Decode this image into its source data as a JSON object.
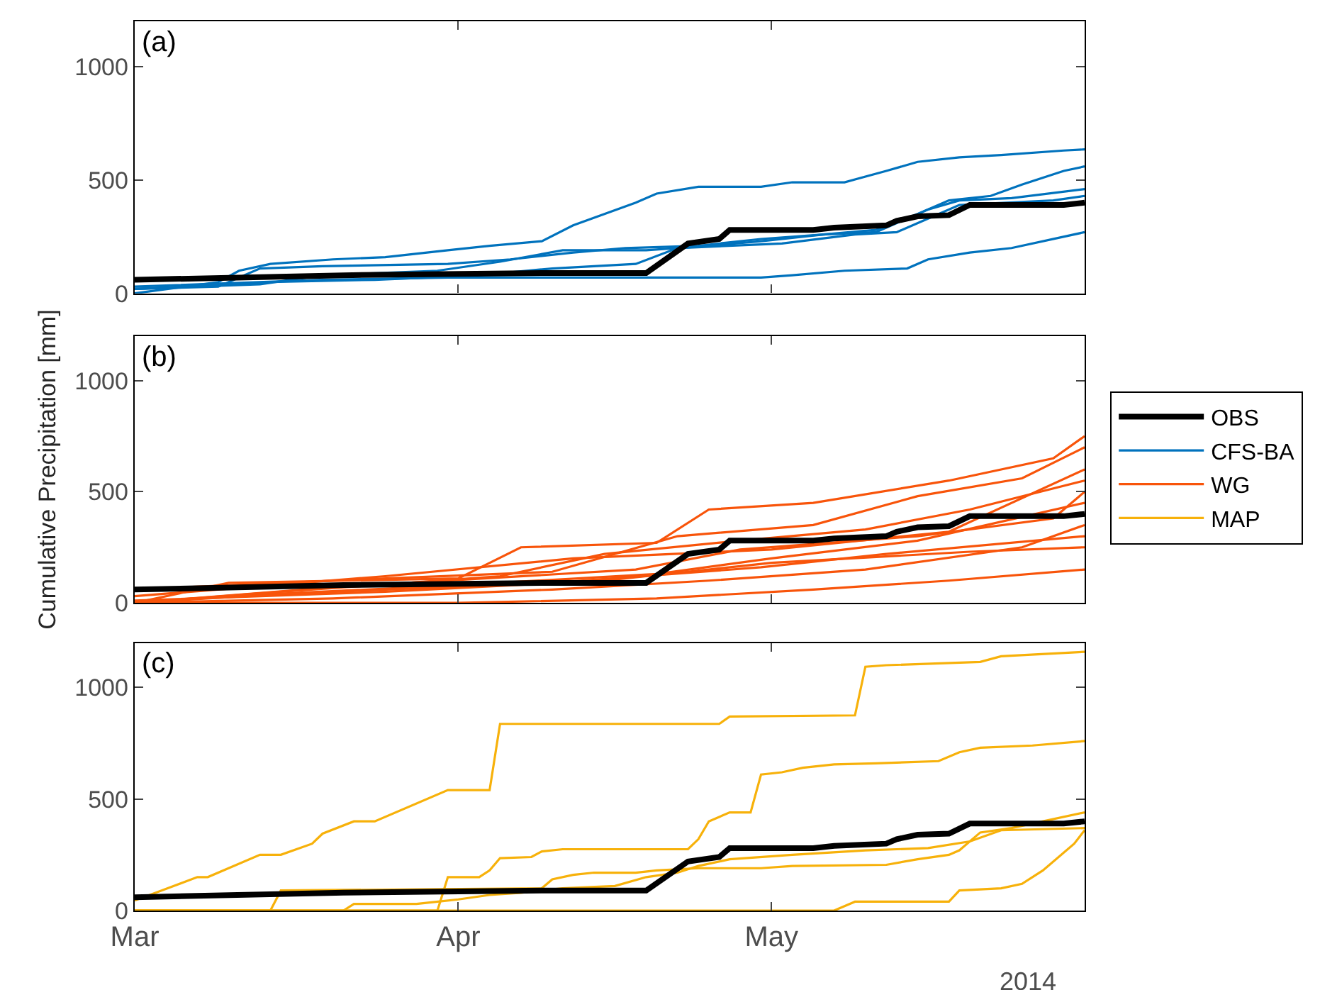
{
  "chart_data": [
    {
      "type": "line",
      "annotations": [
        "(a)"
      ],
      "legend": "right",
      "xlim": [
        "2014-03-01",
        "2014-05-31"
      ],
      "xticks": [
        {
          "value": "2014-03-01",
          "label": null
        },
        {
          "value": "2014-04-01",
          "label": null
        },
        {
          "value": "2014-05-01",
          "label": null
        }
      ],
      "ylim": [
        0,
        1200
      ],
      "yticks": [
        0,
        500,
        1000
      ],
      "grid": false,
      "tick_labels": "y",
      "series": [
        {
          "name": "OBS",
          "color": "#000000",
          "x": [
            "2014-03-01",
            "2014-03-21",
            "2014-04-09",
            "2014-04-19",
            "2014-04-23",
            "2014-04-26",
            "2014-04-27",
            "2014-05-05",
            "2014-05-07",
            "2014-05-12",
            "2014-05-13",
            "2014-05-15",
            "2014-05-18",
            "2014-05-20",
            "2014-05-29",
            "2014-05-31"
          ],
          "values": [
            60,
            80,
            90,
            90,
            220,
            240,
            280,
            280,
            290,
            300,
            320,
            340,
            345,
            390,
            390,
            400
          ]
        },
        {
          "name": "CFS-BA",
          "color": "#0072bd",
          "x": [
            "2014-03-01",
            "2014-03-09",
            "2014-03-11",
            "2014-03-14",
            "2014-03-20",
            "2014-03-25",
            "2014-03-31",
            "2014-04-04",
            "2014-04-09",
            "2014-04-12",
            "2014-04-15",
            "2014-04-18",
            "2014-04-20",
            "2014-04-24",
            "2014-04-30",
            "2014-05-03",
            "2014-05-08",
            "2014-05-12",
            "2014-05-15",
            "2014-05-19",
            "2014-05-23",
            "2014-05-29",
            "2014-05-31"
          ],
          "values": [
            0,
            50,
            100,
            130,
            150,
            160,
            190,
            210,
            230,
            300,
            350,
            400,
            440,
            470,
            470,
            490,
            490,
            540,
            580,
            600,
            610,
            630,
            635
          ]
        },
        {
          "color": "#0072bd",
          "x": [
            "2014-03-01",
            "2014-03-09",
            "2014-03-13",
            "2014-03-19",
            "2014-03-31",
            "2014-04-06",
            "2014-04-12",
            "2014-04-17",
            "2014-04-24",
            "2014-04-30",
            "2014-05-06",
            "2014-05-11",
            "2014-05-15",
            "2014-05-18",
            "2014-05-22",
            "2014-05-25",
            "2014-05-29",
            "2014-05-31"
          ],
          "values": [
            20,
            30,
            110,
            120,
            130,
            150,
            180,
            200,
            210,
            240,
            260,
            280,
            350,
            410,
            430,
            480,
            540,
            560
          ]
        },
        {
          "color": "#0072bd",
          "x": [
            "2014-03-01",
            "2014-03-13",
            "2014-03-19",
            "2014-03-30",
            "2014-04-05",
            "2014-04-11",
            "2014-04-19",
            "2014-04-25",
            "2014-04-30",
            "2014-05-06",
            "2014-05-11",
            "2014-05-16",
            "2014-05-19",
            "2014-05-24",
            "2014-05-31"
          ],
          "values": [
            20,
            40,
            80,
            100,
            140,
            190,
            190,
            210,
            230,
            260,
            270,
            370,
            410,
            420,
            460
          ]
        },
        {
          "color": "#0072bd",
          "x": [
            "2014-03-01",
            "2014-03-19",
            "2014-03-31",
            "2014-04-30",
            "2014-05-03",
            "2014-05-08",
            "2014-05-14",
            "2014-05-16",
            "2014-05-20",
            "2014-05-24",
            "2014-05-31"
          ],
          "values": [
            30,
            60,
            70,
            70,
            80,
            100,
            110,
            150,
            180,
            200,
            270
          ]
        },
        {
          "color": "#0072bd",
          "x": [
            "2014-03-01",
            "2014-03-14",
            "2014-03-24",
            "2014-04-03",
            "2014-04-10",
            "2014-04-18",
            "2014-04-22",
            "2014-05-02",
            "2014-05-09",
            "2014-05-13",
            "2014-05-16",
            "2014-05-19",
            "2014-05-28",
            "2014-05-31"
          ],
          "values": [
            20,
            50,
            60,
            80,
            110,
            130,
            200,
            220,
            260,
            270,
            330,
            390,
            410,
            430
          ]
        }
      ]
    },
    {
      "type": "line",
      "annotations": [
        "(b)"
      ],
      "ylabel": "Cumulative Precipitation [mm]",
      "legend": "right",
      "xlim": [
        "2014-03-01",
        "2014-05-31"
      ],
      "xticks": [
        {
          "value": "2014-03-01",
          "label": null
        },
        {
          "value": "2014-04-01",
          "label": null
        },
        {
          "value": "2014-05-01",
          "label": null
        }
      ],
      "ylim": [
        0,
        1200
      ],
      "yticks": [
        0,
        500,
        1000
      ],
      "grid": false,
      "tick_labels": "y",
      "series": [
        {
          "color": "#000000",
          "x": [
            "2014-03-01",
            "2014-03-21",
            "2014-04-09",
            "2014-04-19",
            "2014-04-23",
            "2014-04-26",
            "2014-04-27",
            "2014-05-05",
            "2014-05-07",
            "2014-05-12",
            "2014-05-13",
            "2014-05-15",
            "2014-05-18",
            "2014-05-20",
            "2014-05-29",
            "2014-05-31"
          ],
          "values": [
            60,
            80,
            90,
            90,
            220,
            240,
            280,
            280,
            290,
            300,
            320,
            340,
            345,
            390,
            390,
            400
          ]
        },
        {
          "name": "WG",
          "color": "#f8540a",
          "x": [
            "2014-03-01",
            "2014-03-10",
            "2014-04-01",
            "2014-04-07",
            "2014-04-20",
            "2014-04-25",
            "2014-05-05",
            "2014-05-18",
            "2014-05-28",
            "2014-05-31"
          ],
          "values": [
            0,
            90,
            110,
            250,
            270,
            420,
            450,
            550,
            650,
            750
          ]
        },
        {
          "color": "#f8540a",
          "x": [
            "2014-03-01",
            "2014-03-20",
            "2014-04-10",
            "2014-04-22",
            "2014-05-05",
            "2014-05-15",
            "2014-05-25",
            "2014-05-31"
          ],
          "values": [
            60,
            100,
            140,
            300,
            350,
            480,
            560,
            700
          ]
        },
        {
          "color": "#f8540a",
          "x": [
            "2014-03-01",
            "2014-03-15",
            "2014-04-05",
            "2014-04-15",
            "2014-04-28",
            "2014-05-10",
            "2014-05-20",
            "2014-05-31"
          ],
          "values": [
            0,
            50,
            120,
            220,
            280,
            330,
            420,
            550
          ]
        },
        {
          "color": "#f8540a",
          "x": [
            "2014-03-01",
            "2014-03-10",
            "2014-04-01",
            "2014-04-20",
            "2014-05-01",
            "2014-05-15",
            "2014-05-31"
          ],
          "values": [
            0,
            30,
            80,
            130,
            200,
            280,
            450
          ]
        },
        {
          "color": "#f8540a",
          "x": [
            "2014-03-01",
            "2014-03-20",
            "2014-04-10",
            "2014-04-25",
            "2014-05-10",
            "2014-05-25",
            "2014-05-31"
          ],
          "values": [
            0,
            20,
            60,
            100,
            150,
            250,
            350
          ]
        },
        {
          "color": "#f8540a",
          "x": [
            "2014-03-01",
            "2014-04-01",
            "2014-04-20",
            "2014-05-05",
            "2014-05-18",
            "2014-05-31"
          ],
          "values": [
            0,
            0,
            20,
            60,
            100,
            150
          ]
        },
        {
          "color": "#f8540a",
          "x": [
            "2014-03-01",
            "2014-03-25",
            "2014-04-15",
            "2014-05-01",
            "2014-05-20",
            "2014-05-31"
          ],
          "values": [
            10,
            50,
            100,
            180,
            230,
            250
          ]
        },
        {
          "color": "#f8540a",
          "x": [
            "2014-03-01",
            "2014-03-20",
            "2014-04-18",
            "2014-04-28",
            "2014-05-15",
            "2014-05-28",
            "2014-05-31"
          ],
          "values": [
            0,
            70,
            150,
            240,
            300,
            380,
            500
          ]
        },
        {
          "color": "#f8540a",
          "x": [
            "2014-03-01",
            "2014-03-25",
            "2014-04-12",
            "2014-05-01",
            "2014-05-18",
            "2014-05-31"
          ],
          "values": [
            30,
            120,
            200,
            240,
            320,
            600
          ]
        },
        {
          "color": "#f8540a",
          "x": [
            "2014-03-01",
            "2014-03-15",
            "2014-04-10",
            "2014-04-30",
            "2014-05-12",
            "2014-05-31"
          ],
          "values": [
            0,
            40,
            90,
            160,
            220,
            300
          ]
        }
      ]
    },
    {
      "type": "line",
      "annotations": [
        "(c)",
        "2014"
      ],
      "legend": "right",
      "xlim": [
        "2014-03-01",
        "2014-05-31"
      ],
      "xticks": [
        {
          "value": "2014-03-01",
          "label": "Mar"
        },
        {
          "value": "2014-04-01",
          "label": "Apr"
        },
        {
          "value": "2014-05-01",
          "label": "May"
        }
      ],
      "ylim": [
        0,
        1200
      ],
      "yticks": [
        0,
        500,
        1000
      ],
      "grid": false,
      "series": [
        {
          "color": "#000000",
          "x": [
            "2014-03-01",
            "2014-03-21",
            "2014-04-09",
            "2014-04-19",
            "2014-04-23",
            "2014-04-26",
            "2014-04-27",
            "2014-05-05",
            "2014-05-07",
            "2014-05-12",
            "2014-05-13",
            "2014-05-15",
            "2014-05-18",
            "2014-05-20",
            "2014-05-29",
            "2014-05-31"
          ],
          "values": [
            60,
            80,
            90,
            90,
            220,
            240,
            280,
            280,
            290,
            300,
            320,
            340,
            345,
            390,
            390,
            400
          ]
        },
        {
          "name": "MAP",
          "color": "#f7b10a",
          "x": [
            "2014-03-01",
            "2014-03-07",
            "2014-03-08",
            "2014-03-13",
            "2014-03-15",
            "2014-03-18",
            "2014-03-19",
            "2014-03-22",
            "2014-03-24",
            "2014-03-31",
            "2014-04-04",
            "2014-04-05",
            "2014-04-26",
            "2014-04-27",
            "2014-05-09",
            "2014-05-10",
            "2014-05-12",
            "2014-05-21",
            "2014-05-23",
            "2014-05-31"
          ],
          "values": [
            45,
            150,
            150,
            250,
            250,
            300,
            345,
            400,
            400,
            540,
            540,
            837,
            837,
            870,
            875,
            1093,
            1100,
            1115,
            1140,
            1160
          ]
        },
        {
          "color": "#f7b10a",
          "x": [
            "2014-03-01",
            "2014-03-30",
            "2014-03-31",
            "2014-04-03",
            "2014-04-04",
            "2014-04-05",
            "2014-04-08",
            "2014-04-09",
            "2014-04-11",
            "2014-04-23",
            "2014-04-24",
            "2014-04-25",
            "2014-04-27",
            "2014-04-29",
            "2014-04-30",
            "2014-05-02",
            "2014-05-04",
            "2014-05-07",
            "2014-05-11",
            "2014-05-17",
            "2014-05-19",
            "2014-05-21",
            "2014-05-26",
            "2014-05-31"
          ],
          "values": [
            0,
            0,
            150,
            150,
            180,
            235,
            240,
            265,
            275,
            275,
            320,
            400,
            440,
            440,
            610,
            620,
            640,
            655,
            660,
            670,
            710,
            730,
            740,
            760
          ]
        },
        {
          "color": "#f7b10a",
          "x": [
            "2014-03-01",
            "2014-03-14",
            "2014-03-15",
            "2014-04-09",
            "2014-04-10",
            "2014-04-12",
            "2014-04-14",
            "2014-04-18",
            "2014-04-20",
            "2014-04-24",
            "2014-04-30",
            "2014-05-03",
            "2014-05-12",
            "2014-05-15",
            "2014-05-18",
            "2014-05-19",
            "2014-05-21",
            "2014-05-24",
            "2014-05-31"
          ],
          "values": [
            0,
            0,
            90,
            100,
            140,
            160,
            170,
            170,
            180,
            190,
            190,
            200,
            205,
            230,
            250,
            270,
            350,
            370,
            440
          ]
        },
        {
          "color": "#f7b10a",
          "x": [
            "2014-03-01",
            "2014-03-21",
            "2014-03-22",
            "2014-03-28",
            "2014-04-01",
            "2014-04-04",
            "2014-04-07",
            "2014-04-11",
            "2014-04-16",
            "2014-04-19",
            "2014-04-22",
            "2014-04-24",
            "2014-04-27",
            "2014-05-03",
            "2014-05-10",
            "2014-05-16",
            "2014-05-20",
            "2014-05-23",
            "2014-05-31"
          ],
          "values": [
            0,
            0,
            30,
            30,
            50,
            70,
            80,
            100,
            110,
            150,
            170,
            200,
            230,
            250,
            270,
            280,
            310,
            360,
            370
          ]
        },
        {
          "color": "#f7b10a",
          "x": [
            "2014-03-01",
            "2014-05-07",
            "2014-05-09",
            "2014-05-18",
            "2014-05-19",
            "2014-05-23",
            "2014-05-25",
            "2014-05-27",
            "2014-05-30",
            "2014-05-31"
          ],
          "values": [
            0,
            0,
            40,
            40,
            90,
            100,
            120,
            180,
            300,
            360
          ]
        }
      ]
    }
  ]
}
